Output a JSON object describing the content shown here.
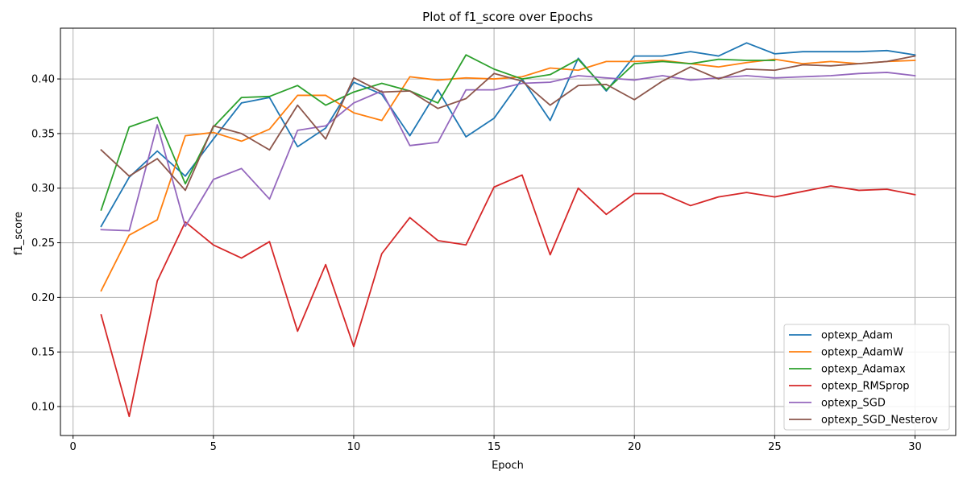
{
  "chart_data": {
    "type": "line",
    "title": "Plot of f1_score over Epochs",
    "xlabel": "Epoch",
    "ylabel": "f1_score",
    "xlim": [
      -0.45,
      31.45
    ],
    "ylim": [
      0.0735,
      0.4465
    ],
    "xticks": [
      0,
      5,
      10,
      15,
      20,
      25,
      30
    ],
    "yticks": [
      0.1,
      0.15,
      0.2,
      0.25,
      0.3,
      0.35,
      0.4
    ],
    "xtick_labels": [
      "0",
      "5",
      "10",
      "15",
      "20",
      "25",
      "30"
    ],
    "ytick_labels": [
      "0.10",
      "0.15",
      "0.20",
      "0.25",
      "0.30",
      "0.35",
      "0.40"
    ],
    "grid": true,
    "legend_position": "lower-right",
    "x": [
      1,
      2,
      3,
      4,
      5,
      6,
      7,
      8,
      9,
      10,
      11,
      12,
      13,
      14,
      15,
      16,
      17,
      18,
      19,
      20,
      21,
      22,
      23,
      24,
      25,
      26,
      27,
      28,
      29,
      30
    ],
    "series": [
      {
        "name": "optexp_Adam",
        "color": "#1f77b4",
        "values": [
          0.265,
          0.31,
          0.334,
          0.311,
          0.345,
          0.378,
          0.383,
          0.338,
          0.355,
          0.397,
          0.386,
          0.348,
          0.39,
          0.347,
          0.364,
          0.4,
          0.362,
          0.419,
          0.389,
          0.421,
          0.421,
          0.425,
          0.421,
          0.433,
          0.423,
          0.425,
          0.425,
          0.425,
          0.426,
          0.422
        ]
      },
      {
        "name": "optexp_AdamW",
        "color": "#ff7f0e",
        "values": [
          0.206,
          0.257,
          0.271,
          0.348,
          0.351,
          0.343,
          0.354,
          0.385,
          0.385,
          0.369,
          0.362,
          0.402,
          0.399,
          0.401,
          0.4,
          0.402,
          0.41,
          0.408,
          0.416,
          0.416,
          0.417,
          0.414,
          0.411,
          0.415,
          0.418,
          0.414,
          0.416,
          0.414,
          0.416,
          0.417
        ]
      },
      {
        "name": "optexp_Adamax",
        "color": "#2ca02c",
        "values": [
          0.28,
          0.356,
          0.365,
          0.304,
          0.356,
          0.383,
          0.384,
          0.394,
          0.376,
          0.388,
          0.396,
          0.389,
          0.378,
          0.422,
          0.409,
          0.4,
          0.404,
          0.418,
          0.39,
          0.414,
          0.416,
          0.414,
          0.418,
          0.417,
          0.417,
          null,
          null,
          null,
          null,
          null
        ]
      },
      {
        "name": "optexp_RMSprop",
        "color": "#d62728",
        "values": [
          0.184,
          0.091,
          0.215,
          0.269,
          0.248,
          0.236,
          0.251,
          0.169,
          0.23,
          0.155,
          0.24,
          0.273,
          0.252,
          0.248,
          0.301,
          0.312,
          0.239,
          0.3,
          0.276,
          0.295,
          0.295,
          0.284,
          0.292,
          0.296,
          0.292,
          0.297,
          0.302,
          0.298,
          0.299,
          0.294
        ]
      },
      {
        "name": "optexp_SGD",
        "color": "#9467bd",
        "values": [
          0.262,
          0.261,
          0.358,
          0.265,
          0.308,
          0.318,
          0.29,
          0.353,
          0.357,
          0.378,
          0.389,
          0.339,
          0.342,
          0.39,
          0.39,
          0.396,
          0.397,
          0.403,
          0.401,
          0.399,
          0.403,
          0.399,
          0.401,
          0.403,
          0.401,
          0.402,
          0.403,
          0.405,
          0.406,
          0.403
        ]
      },
      {
        "name": "optexp_SGD_Nesterov",
        "color": "#8c564b",
        "values": [
          0.335,
          0.311,
          0.327,
          0.298,
          0.357,
          0.35,
          0.335,
          0.376,
          0.345,
          0.401,
          0.388,
          0.389,
          0.373,
          0.382,
          0.405,
          0.398,
          0.376,
          0.394,
          0.395,
          0.381,
          0.398,
          0.411,
          0.4,
          0.409,
          0.408,
          0.413,
          0.412,
          0.414,
          0.416,
          0.421
        ]
      }
    ]
  }
}
